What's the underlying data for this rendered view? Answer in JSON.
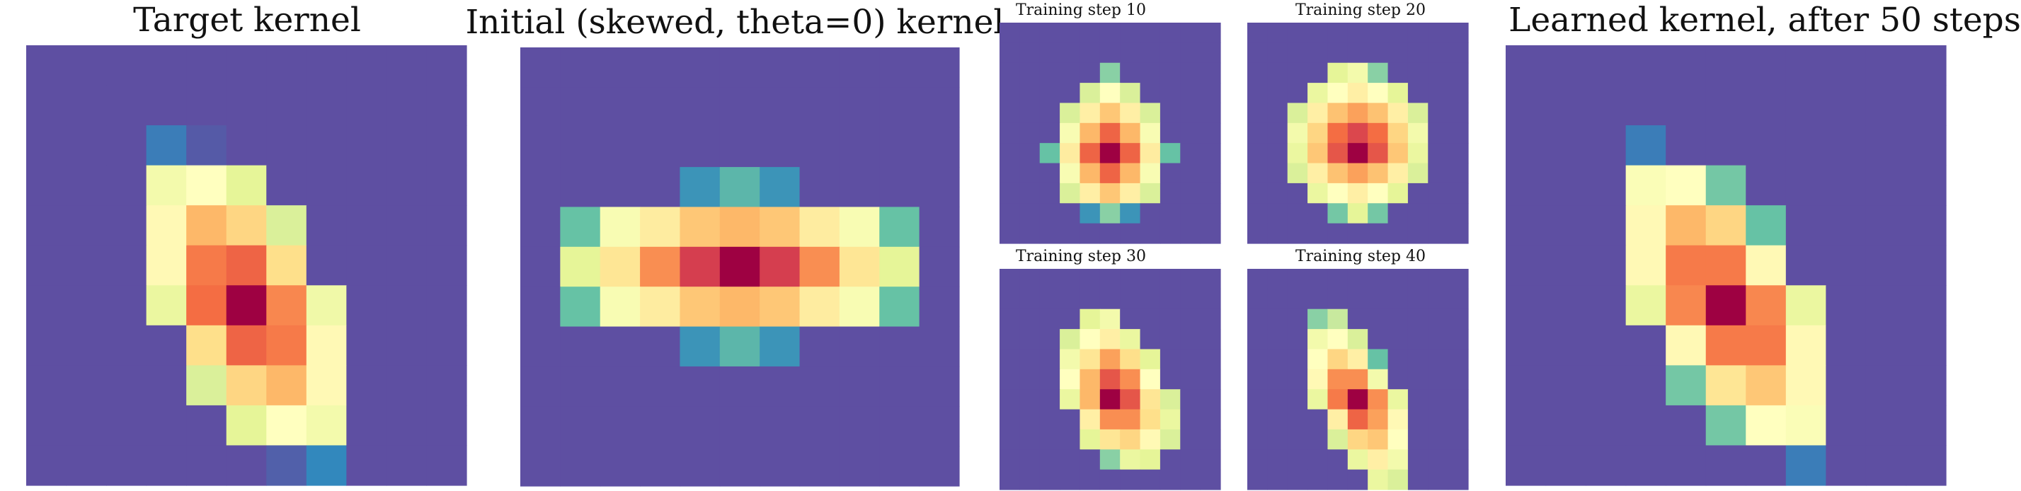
{
  "chart_data": [
    {
      "type": "heatmap",
      "title": "Target kernel",
      "grid": [
        [
          0,
          0,
          0,
          0,
          0,
          0,
          0,
          0,
          0,
          0,
          0
        ],
        [
          0,
          0,
          0,
          0,
          0,
          0,
          0,
          0,
          0,
          0,
          0
        ],
        [
          0,
          0,
          0,
          0.08,
          0.02,
          0,
          0,
          0,
          0,
          0,
          0
        ],
        [
          0,
          0,
          0,
          0.45,
          0.5,
          0.4,
          0,
          0,
          0,
          0,
          0
        ],
        [
          0,
          0,
          0,
          0.52,
          0.68,
          0.62,
          0.38,
          0,
          0,
          0,
          0
        ],
        [
          0,
          0,
          0,
          0.52,
          0.78,
          0.82,
          0.6,
          0,
          0,
          0,
          0
        ],
        [
          0,
          0,
          0,
          0.42,
          0.8,
          1.0,
          0.76,
          0.44,
          0,
          0,
          0
        ],
        [
          0,
          0,
          0,
          0,
          0.6,
          0.82,
          0.78,
          0.52,
          0,
          0,
          0
        ],
        [
          0,
          0,
          0,
          0,
          0.38,
          0.62,
          0.68,
          0.52,
          0,
          0,
          0
        ],
        [
          0,
          0,
          0,
          0,
          0,
          0.4,
          0.5,
          0.45,
          0,
          0,
          0
        ],
        [
          0,
          0,
          0,
          0,
          0,
          0,
          0.03,
          0.1,
          0,
          0,
          0
        ]
      ]
    },
    {
      "type": "heatmap",
      "title": "Initial (skewed, theta=0) kernel",
      "grid": [
        [
          0,
          0,
          0,
          0,
          0,
          0,
          0,
          0,
          0,
          0,
          0
        ],
        [
          0,
          0,
          0,
          0,
          0,
          0,
          0,
          0,
          0,
          0,
          0
        ],
        [
          0,
          0,
          0,
          0,
          0,
          0,
          0,
          0,
          0,
          0,
          0
        ],
        [
          0,
          0,
          0,
          0,
          0.12,
          0.18,
          0.12,
          0,
          0,
          0,
          0
        ],
        [
          0,
          0.2,
          0.47,
          0.56,
          0.65,
          0.68,
          0.65,
          0.56,
          0.47,
          0.2,
          0
        ],
        [
          0,
          0.4,
          0.58,
          0.75,
          0.9,
          1.0,
          0.9,
          0.75,
          0.58,
          0.4,
          0
        ],
        [
          0,
          0.2,
          0.47,
          0.56,
          0.65,
          0.68,
          0.65,
          0.56,
          0.47,
          0.2,
          0
        ],
        [
          0,
          0,
          0,
          0,
          0.12,
          0.18,
          0.12,
          0,
          0,
          0,
          0
        ],
        [
          0,
          0,
          0,
          0,
          0,
          0,
          0,
          0,
          0,
          0,
          0
        ],
        [
          0,
          0,
          0,
          0,
          0,
          0,
          0,
          0,
          0,
          0,
          0
        ],
        [
          0,
          0,
          0,
          0,
          0,
          0,
          0,
          0,
          0,
          0,
          0
        ]
      ]
    },
    {
      "type": "heatmap",
      "title": "Training step 10",
      "grid": [
        [
          0,
          0,
          0,
          0,
          0,
          0,
          0,
          0,
          0,
          0,
          0
        ],
        [
          0,
          0,
          0,
          0,
          0,
          0,
          0,
          0,
          0,
          0,
          0
        ],
        [
          0,
          0,
          0,
          0,
          0,
          0.25,
          0,
          0,
          0,
          0,
          0
        ],
        [
          0,
          0,
          0,
          0,
          0.38,
          0.5,
          0.38,
          0,
          0,
          0,
          0
        ],
        [
          0,
          0,
          0,
          0.38,
          0.55,
          0.65,
          0.55,
          0.38,
          0,
          0,
          0
        ],
        [
          0,
          0,
          0,
          0.47,
          0.68,
          0.82,
          0.68,
          0.47,
          0,
          0,
          0
        ],
        [
          0,
          0,
          0.2,
          0.56,
          0.82,
          1.0,
          0.82,
          0.56,
          0.2,
          0,
          0
        ],
        [
          0,
          0,
          0,
          0.47,
          0.68,
          0.82,
          0.68,
          0.47,
          0,
          0,
          0
        ],
        [
          0,
          0,
          0,
          0.38,
          0.55,
          0.65,
          0.55,
          0.38,
          0,
          0,
          0
        ],
        [
          0,
          0,
          0,
          0,
          0.12,
          0.25,
          0.12,
          0,
          0,
          0,
          0
        ],
        [
          0,
          0,
          0,
          0,
          0,
          0,
          0,
          0,
          0,
          0,
          0
        ]
      ]
    },
    {
      "type": "heatmap",
      "title": "Training step 20",
      "grid": [
        [
          0,
          0,
          0,
          0,
          0,
          0,
          0,
          0,
          0,
          0,
          0
        ],
        [
          0,
          0,
          0,
          0,
          0,
          0,
          0,
          0,
          0,
          0,
          0
        ],
        [
          0,
          0,
          0,
          0,
          0.4,
          0.45,
          0.25,
          0,
          0,
          0,
          0
        ],
        [
          0,
          0,
          0,
          0.42,
          0.5,
          0.55,
          0.5,
          0.4,
          0,
          0,
          0
        ],
        [
          0,
          0,
          0.38,
          0.55,
          0.66,
          0.72,
          0.66,
          0.55,
          0.38,
          0,
          0
        ],
        [
          0,
          0,
          0.45,
          0.62,
          0.8,
          0.88,
          0.8,
          0.62,
          0.45,
          0,
          0
        ],
        [
          0,
          0,
          0.42,
          0.65,
          0.85,
          1.0,
          0.85,
          0.65,
          0.42,
          0,
          0
        ],
        [
          0,
          0,
          0.38,
          0.55,
          0.66,
          0.72,
          0.66,
          0.55,
          0.38,
          0,
          0
        ],
        [
          0,
          0,
          0,
          0.42,
          0.5,
          0.55,
          0.5,
          0.4,
          0,
          0,
          0
        ],
        [
          0,
          0,
          0,
          0,
          0.22,
          0.4,
          0.22,
          0,
          0,
          0,
          0
        ],
        [
          0,
          0,
          0,
          0,
          0,
          0,
          0,
          0,
          0,
          0,
          0
        ]
      ]
    },
    {
      "type": "heatmap",
      "title": "Training step 30",
      "grid": [
        [
          0,
          0,
          0,
          0,
          0,
          0,
          0,
          0,
          0,
          0,
          0
        ],
        [
          0,
          0,
          0,
          0,
          0,
          0,
          0,
          0,
          0,
          0,
          0
        ],
        [
          0,
          0,
          0,
          0,
          0.4,
          0.45,
          0,
          0,
          0,
          0,
          0
        ],
        [
          0,
          0,
          0,
          0.38,
          0.5,
          0.55,
          0.42,
          0,
          0,
          0,
          0
        ],
        [
          0,
          0,
          0,
          0.45,
          0.58,
          0.72,
          0.6,
          0.4,
          0,
          0,
          0
        ],
        [
          0,
          0,
          0,
          0.5,
          0.68,
          0.85,
          0.75,
          0.5,
          0,
          0,
          0
        ],
        [
          0,
          0,
          0,
          0.42,
          0.68,
          1.0,
          0.85,
          0.58,
          0.38,
          0,
          0
        ],
        [
          0,
          0,
          0,
          0,
          0.55,
          0.75,
          0.75,
          0.6,
          0.42,
          0,
          0
        ],
        [
          0,
          0,
          0,
          0,
          0.4,
          0.58,
          0.62,
          0.52,
          0.38,
          0,
          0
        ],
        [
          0,
          0,
          0,
          0,
          0,
          0.25,
          0.42,
          0.4,
          0,
          0,
          0
        ],
        [
          0,
          0,
          0,
          0,
          0,
          0,
          0,
          0,
          0,
          0,
          0
        ]
      ]
    },
    {
      "type": "heatmap",
      "title": "Training step 40",
      "grid": [
        [
          0,
          0,
          0,
          0,
          0,
          0,
          0,
          0,
          0,
          0,
          0
        ],
        [
          0,
          0,
          0,
          0,
          0,
          0,
          0,
          0,
          0,
          0,
          0
        ],
        [
          0,
          0,
          0,
          0.25,
          0.35,
          0,
          0,
          0,
          0,
          0,
          0
        ],
        [
          0,
          0,
          0,
          0.45,
          0.5,
          0.38,
          0,
          0,
          0,
          0,
          0
        ],
        [
          0,
          0,
          0,
          0.5,
          0.62,
          0.55,
          0.2,
          0,
          0,
          0,
          0
        ],
        [
          0,
          0,
          0,
          0.52,
          0.75,
          0.75,
          0.45,
          0,
          0,
          0,
          0
        ],
        [
          0,
          0,
          0,
          0.42,
          0.78,
          1.0,
          0.75,
          0.42,
          0,
          0,
          0
        ],
        [
          0,
          0,
          0,
          0,
          0.55,
          0.82,
          0.72,
          0.52,
          0,
          0,
          0
        ],
        [
          0,
          0,
          0,
          0,
          0.38,
          0.62,
          0.65,
          0.5,
          0,
          0,
          0
        ],
        [
          0,
          0,
          0,
          0,
          0,
          0.42,
          0.55,
          0.45,
          0,
          0,
          0
        ],
        [
          0,
          0,
          0,
          0,
          0,
          0,
          0.42,
          0.38,
          0,
          0,
          0
        ]
      ]
    },
    {
      "type": "heatmap",
      "title": "Learned kernel, after 50 steps",
      "grid": [
        [
          0,
          0,
          0,
          0,
          0,
          0,
          0,
          0,
          0,
          0,
          0
        ],
        [
          0,
          0,
          0,
          0,
          0,
          0,
          0,
          0,
          0,
          0,
          0
        ],
        [
          0,
          0,
          0,
          0.08,
          0,
          0,
          0,
          0,
          0,
          0,
          0
        ],
        [
          0,
          0,
          0,
          0.48,
          0.5,
          0.22,
          0,
          0,
          0,
          0,
          0
        ],
        [
          0,
          0,
          0,
          0.52,
          0.68,
          0.62,
          0.2,
          0,
          0,
          0,
          0
        ],
        [
          0,
          0,
          0,
          0.52,
          0.78,
          0.78,
          0.52,
          0,
          0,
          0,
          0
        ],
        [
          0,
          0,
          0,
          0.42,
          0.76,
          1.0,
          0.76,
          0.42,
          0,
          0,
          0
        ],
        [
          0,
          0,
          0,
          0,
          0.52,
          0.78,
          0.78,
          0.52,
          0,
          0,
          0
        ],
        [
          0,
          0,
          0,
          0,
          0.22,
          0.58,
          0.65,
          0.52,
          0,
          0,
          0
        ],
        [
          0,
          0,
          0,
          0,
          0,
          0.22,
          0.5,
          0.48,
          0,
          0,
          0
        ],
        [
          0,
          0,
          0,
          0,
          0,
          0,
          0,
          0.08,
          0,
          0,
          0
        ]
      ]
    }
  ]
}
